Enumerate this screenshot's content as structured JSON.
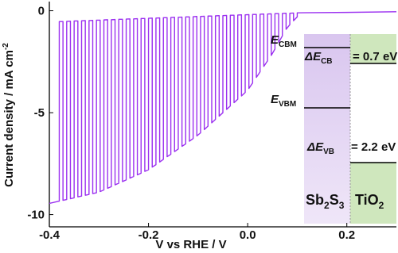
{
  "chart_data": {
    "type": "line",
    "xlabel": "V vs RHE / V",
    "ylabel": {
      "text": "Current density / mA cm",
      "sup": "-2"
    },
    "xlim": [
      -0.4,
      0.3
    ],
    "ylim": [
      -10.6,
      0.45
    ],
    "xticks": [
      -0.4,
      -0.2,
      {
        "value": 0,
        "label": "0.0"
      },
      0.2
    ],
    "yticks": [
      0,
      -5,
      -10
    ],
    "x": [
      -0.4,
      -0.38,
      -0.38,
      -0.3725,
      -0.3725,
      -0.365,
      -0.365,
      -0.3575,
      -0.3575,
      -0.35,
      -0.35,
      -0.3425,
      -0.3425,
      -0.335,
      -0.335,
      -0.3275,
      -0.3275,
      -0.32,
      -0.32,
      -0.3125,
      -0.3125,
      -0.305,
      -0.305,
      -0.2975,
      -0.2975,
      -0.29,
      -0.29,
      -0.2825,
      -0.2825,
      -0.275,
      -0.275,
      -0.2675,
      -0.2675,
      -0.26,
      -0.26,
      -0.2525,
      -0.2525,
      -0.245,
      -0.245,
      -0.2375,
      -0.2375,
      -0.23,
      -0.23,
      -0.2225,
      -0.2225,
      -0.215,
      -0.215,
      -0.2075,
      -0.2075,
      -0.2,
      -0.2,
      -0.1925,
      -0.1925,
      -0.185,
      -0.185,
      -0.1775,
      -0.1775,
      -0.17,
      -0.17,
      -0.1625,
      -0.1625,
      -0.155,
      -0.155,
      -0.1475,
      -0.1475,
      -0.14,
      -0.14,
      -0.1325,
      -0.1325,
      -0.125,
      -0.125,
      -0.1175,
      -0.1175,
      -0.11,
      -0.11,
      -0.1025,
      -0.1025,
      -0.095,
      -0.095,
      -0.0875,
      -0.0875,
      -0.08,
      -0.08,
      -0.0725,
      -0.0725,
      -0.065,
      -0.065,
      -0.0575,
      -0.0575,
      -0.05,
      -0.05,
      -0.0425,
      -0.0425,
      -0.035,
      -0.035,
      -0.0275,
      -0.0275,
      -0.02,
      -0.02,
      -0.0125,
      -0.0125,
      -0.005,
      -0.005,
      0.0025,
      0.0025,
      0.01,
      0.01,
      0.0175,
      0.0175,
      0.025,
      0.025,
      0.0325,
      0.0325,
      0.04,
      0.04,
      0.0475,
      0.0475,
      0.055,
      0.055,
      0.0625,
      0.0625,
      0.07,
      0.07,
      0.0775,
      0.0775,
      0.085,
      0.085,
      0.0925,
      0.0925,
      0.1,
      0.1,
      0.2,
      0.3
    ],
    "series": [
      {
        "color": "#9b30f0",
        "values": [
          -9.45,
          -9.34,
          -0.53,
          -0.53,
          -9.3,
          -9.26,
          -0.52,
          -0.51,
          -9.22,
          -9.18,
          -0.5,
          -0.5,
          -9.13,
          -9.09,
          -0.49,
          -0.48,
          -9.05,
          -9.01,
          -0.48,
          -0.47,
          -8.97,
          -8.93,
          -0.46,
          -0.46,
          -8.87,
          -8.79,
          -0.45,
          -0.44,
          -8.71,
          -8.63,
          -0.44,
          -0.43,
          -8.54,
          -8.46,
          -0.42,
          -0.42,
          -8.38,
          -8.3,
          -0.41,
          -0.4,
          -8.21,
          -8.13,
          -0.4,
          -0.39,
          -8.05,
          -7.97,
          -0.38,
          -0.38,
          -7.88,
          -7.8,
          -0.37,
          -0.36,
          -7.67,
          -7.55,
          -0.36,
          -0.35,
          -7.42,
          -7.29,
          -0.34,
          -0.34,
          -7.16,
          -7.04,
          -0.33,
          -0.32,
          -6.91,
          -6.78,
          -0.32,
          -0.31,
          -6.65,
          -6.53,
          -0.3,
          -0.3,
          -6.4,
          -6.27,
          -0.29,
          -0.28,
          -6.14,
          -5.99,
          -0.28,
          -0.27,
          -5.83,
          -5.66,
          -0.26,
          -0.26,
          -5.5,
          -5.33,
          -0.25,
          -0.24,
          -5.17,
          -5.0,
          -0.24,
          -0.23,
          -4.84,
          -4.67,
          -0.22,
          -0.22,
          -4.51,
          -4.34,
          -0.21,
          -0.2,
          -4.18,
          -4.01,
          -0.2,
          -0.19,
          -3.81,
          -3.54,
          -0.18,
          -0.18,
          -3.27,
          -3.0,
          -0.17,
          -0.16,
          -2.73,
          -2.46,
          -0.16,
          -0.15,
          -2.19,
          -1.88,
          -0.14,
          -0.14,
          -1.56,
          -1.23,
          -0.13,
          -0.12,
          -0.91,
          -0.68,
          -0.12,
          -0.11,
          -0.49,
          -0.3,
          -0.1,
          -0.08,
          -0.05
        ]
      }
    ],
    "inset": {
      "cbm_label": {
        "text": "E",
        "sub": "CBM"
      },
      "cb_offset": {
        "text": "ΔE",
        "sub": "CB",
        "value": "= 0.7 eV"
      },
      "vbm_label": {
        "text": "E",
        "sub": "VBM"
      },
      "vb_offset": {
        "text": "ΔE",
        "sub": "VB",
        "value": "= 2.2 eV"
      },
      "materials": [
        {
          "parts": [
            "Sb",
            "2",
            "S",
            "3"
          ],
          "color": "#7a2fb8"
        },
        {
          "parts": [
            "TiO",
            "2"
          ],
          "color": "#4f8a25"
        }
      ]
    }
  }
}
